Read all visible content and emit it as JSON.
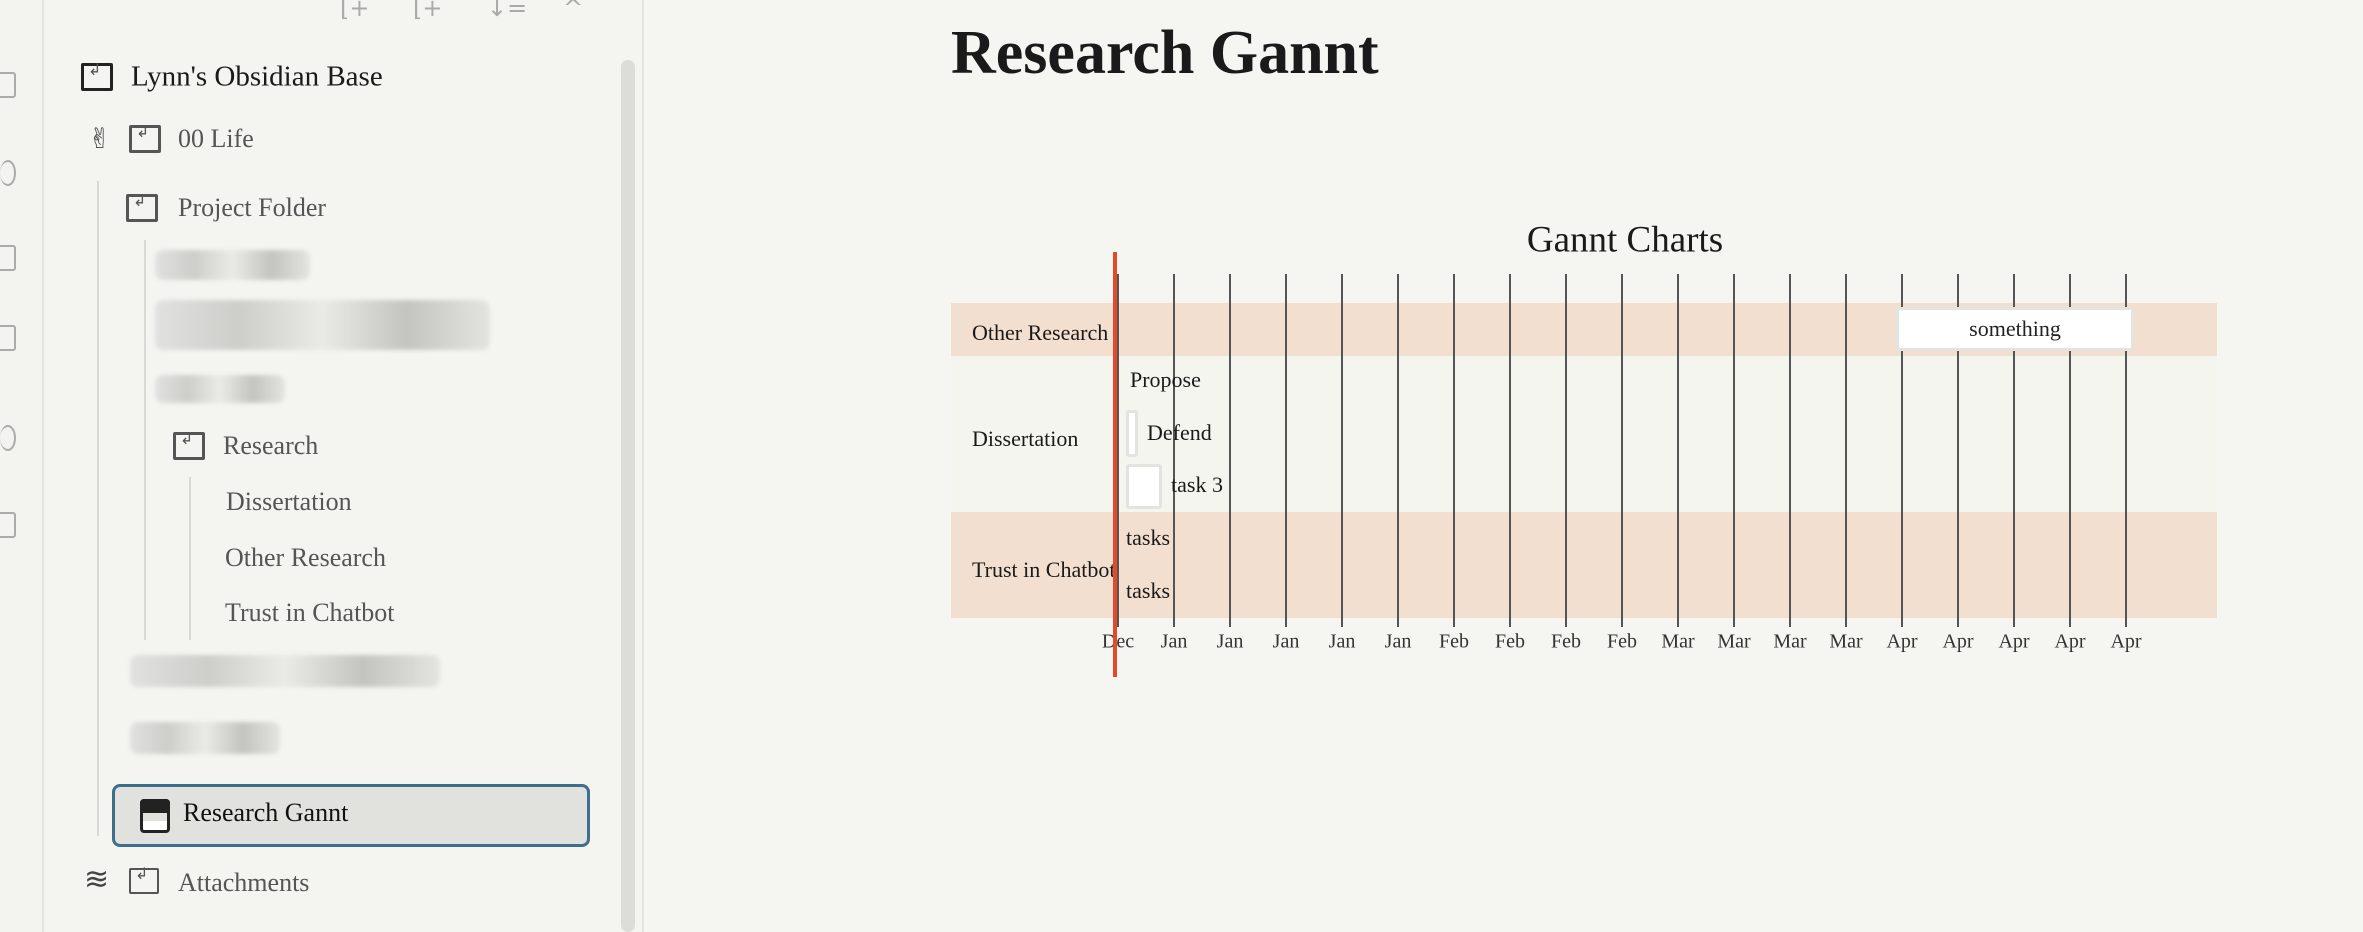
{
  "sidebar": {
    "toolbar": [
      "new-note-icon",
      "new-folder-icon",
      "sort-icon",
      "collapse-icon"
    ],
    "vault_name": "Lynn's Obsidian Base",
    "items": {
      "life": "00 Life",
      "project_folder": "Project Folder",
      "research": "Research",
      "dissertation": "Dissertation",
      "other_research": "Other Research",
      "trust_in_chatbot": "Trust in Chatbot",
      "research_gannt": "Research Gannt",
      "attachments": "Attachments"
    }
  },
  "main": {
    "title": "Research Gannt"
  },
  "colors": {
    "band": "#f3dfcf",
    "today_line": "#e24a2a",
    "selected_border": "#3f6e8c"
  },
  "chart_data": {
    "type": "gantt",
    "title": "Gannt Charts",
    "x_tick_labels": [
      "Dec",
      "Jan",
      "Jan",
      "Jan",
      "Jan",
      "Jan",
      "Feb",
      "Feb",
      "Feb",
      "Feb",
      "Mar",
      "Mar",
      "Mar",
      "Mar",
      "Apr",
      "Apr",
      "Apr",
      "Apr",
      "Apr"
    ],
    "sections": [
      {
        "name": "Other Research",
        "tasks": [
          {
            "name": "something"
          }
        ]
      },
      {
        "name": "Dissertation",
        "tasks": [
          {
            "name": "Propose"
          },
          {
            "name": "Defend"
          },
          {
            "name": "task 3"
          }
        ]
      },
      {
        "name": "Trust in Chatbot",
        "tasks": [
          {
            "name": "tasks"
          },
          {
            "name": "tasks"
          }
        ]
      }
    ],
    "today_marker": true,
    "grid": true
  }
}
